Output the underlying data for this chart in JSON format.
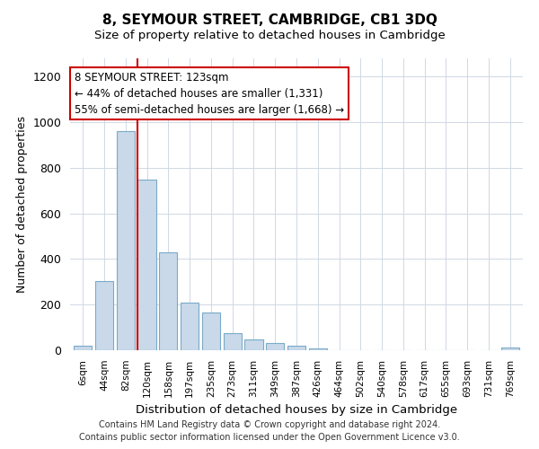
{
  "title": "8, SEYMOUR STREET, CAMBRIDGE, CB1 3DQ",
  "subtitle": "Size of property relative to detached houses in Cambridge",
  "xlabel": "Distribution of detached houses by size in Cambridge",
  "ylabel": "Number of detached properties",
  "bar_labels": [
    "6sqm",
    "44sqm",
    "82sqm",
    "120sqm",
    "158sqm",
    "197sqm",
    "235sqm",
    "273sqm",
    "311sqm",
    "349sqm",
    "387sqm",
    "426sqm",
    "464sqm",
    "502sqm",
    "540sqm",
    "578sqm",
    "617sqm",
    "655sqm",
    "693sqm",
    "731sqm",
    "769sqm"
  ],
  "bar_heights": [
    20,
    305,
    960,
    750,
    430,
    210,
    165,
    75,
    48,
    33,
    18,
    8,
    0,
    0,
    0,
    0,
    0,
    0,
    0,
    0,
    10
  ],
  "bar_color": "#c9d9ea",
  "bar_edge_color": "#7aaac8",
  "highlight_index": 3,
  "highlight_line_color": "#cc0000",
  "annotation_box_edge_color": "#cc0000",
  "annotation_line1": "8 SEYMOUR STREET: 123sqm",
  "annotation_line2": "← 44% of detached houses are smaller (1,331)",
  "annotation_line3": "55% of semi-detached houses are larger (1,668) →",
  "annotation_fontsize": 8.5,
  "ylim": [
    0,
    1280
  ],
  "yticks": [
    0,
    200,
    400,
    600,
    800,
    1000,
    1200
  ],
  "footer_line1": "Contains HM Land Registry data © Crown copyright and database right 2024.",
  "footer_line2": "Contains public sector information licensed under the Open Government Licence v3.0.",
  "footer_fontsize": 7.0,
  "title_fontsize": 11,
  "subtitle_fontsize": 9.5,
  "background_color": "#ffffff"
}
